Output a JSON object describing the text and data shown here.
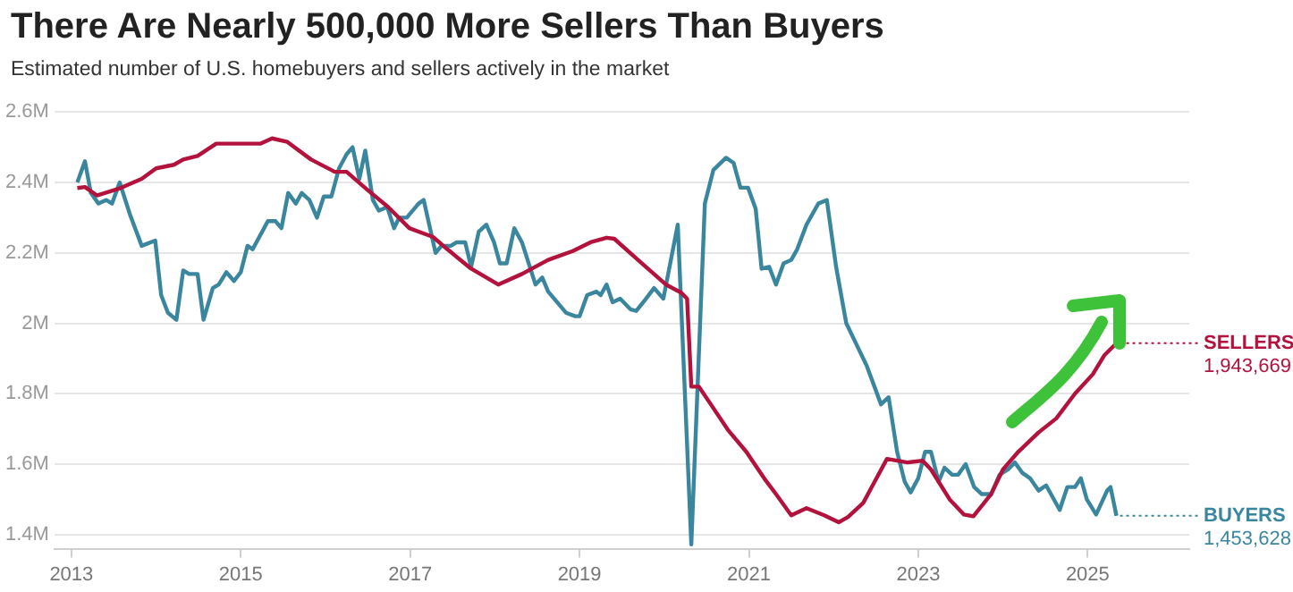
{
  "chart_data": {
    "type": "line",
    "title": "There Are Nearly 500,000 More Sellers Than Buyers",
    "subtitle": "Estimated number of U.S. homebuyers and sellers actively in the market",
    "xlim": [
      2012.8,
      2026.2
    ],
    "xticks": [
      2013,
      2015,
      2017,
      2019,
      2021,
      2023,
      2025
    ],
    "ylim": [
      1360000,
      2600000
    ],
    "yticks": [
      {
        "value": 1400000,
        "label": "1.4M"
      },
      {
        "value": 1600000,
        "label": "1.6M"
      },
      {
        "value": 1800000,
        "label": "1.8M"
      },
      {
        "value": 2000000,
        "label": "2M"
      },
      {
        "value": 2200000,
        "label": "2.2M"
      },
      {
        "value": 2400000,
        "label": "2.4M"
      },
      {
        "value": 2600000,
        "label": "2.6M"
      }
    ],
    "grid": "y",
    "legend": "right",
    "marker": "none",
    "line_style": "solid",
    "series": [
      {
        "name": "SELLERS",
        "color": "#b3123d",
        "x": [
          2013.07,
          2013.16,
          2013.3,
          2013.58,
          2013.83,
          2014.0,
          2014.21,
          2014.32,
          2014.49,
          2014.71,
          2015.0,
          2015.23,
          2015.37,
          2015.55,
          2015.83,
          2016.11,
          2016.25,
          2016.49,
          2016.74,
          2016.99,
          2017.27,
          2017.44,
          2017.72,
          2018.04,
          2018.32,
          2018.63,
          2018.92,
          2019.13,
          2019.32,
          2019.41,
          2019.69,
          2020.02,
          2020.2,
          2020.27,
          2020.32,
          2020.41,
          2020.55,
          2020.76,
          2020.97,
          2021.18,
          2021.32,
          2021.5,
          2021.68,
          2021.89,
          2022.06,
          2022.17,
          2022.35,
          2022.45,
          2022.63,
          2022.87,
          2023.05,
          2023.15,
          2023.37,
          2023.54,
          2023.65,
          2023.86,
          2024.0,
          2024.18,
          2024.42,
          2024.63,
          2024.85,
          2025.06,
          2025.2,
          2025.34
        ],
        "values": [
          2384000,
          2387000,
          2363000,
          2384000,
          2410000,
          2440000,
          2450000,
          2465000,
          2475000,
          2510000,
          2510000,
          2510000,
          2525000,
          2515000,
          2465000,
          2430000,
          2430000,
          2380000,
          2330000,
          2270000,
          2245000,
          2210000,
          2155000,
          2110000,
          2140000,
          2180000,
          2205000,
          2230000,
          2243000,
          2240000,
          2180000,
          2110000,
          2087000,
          2070000,
          1820000,
          1820000,
          1770000,
          1695000,
          1635000,
          1560000,
          1515000,
          1455000,
          1475000,
          1455000,
          1435000,
          1450000,
          1490000,
          1535000,
          1615000,
          1605000,
          1610000,
          1585000,
          1500000,
          1457000,
          1452000,
          1515000,
          1585000,
          1635000,
          1690000,
          1730000,
          1800000,
          1855000,
          1910000,
          1943669
        ],
        "value_labels": [
          null,
          null,
          null,
          null,
          null,
          null,
          null,
          null,
          null,
          null,
          null,
          null,
          null,
          null,
          null,
          null,
          null,
          null,
          null,
          null,
          null,
          null,
          null,
          null,
          null,
          null,
          null,
          null,
          null,
          null,
          null,
          null,
          null,
          null,
          null,
          null,
          null,
          null,
          null,
          null,
          null,
          null,
          null,
          null,
          null,
          null,
          null,
          null,
          null,
          null,
          null,
          null,
          null,
          null,
          null,
          null,
          null,
          null,
          null,
          null,
          null,
          null,
          null,
          "1,943,669"
        ]
      },
      {
        "name": "BUYERS",
        "color": "#3a869f",
        "x": [
          2013.07,
          2013.16,
          2013.23,
          2013.32,
          2013.41,
          2013.48,
          2013.57,
          2013.69,
          2013.83,
          2013.99,
          2014.06,
          2014.14,
          2014.24,
          2014.32,
          2014.39,
          2014.49,
          2014.56,
          2014.67,
          2014.74,
          2014.83,
          2014.92,
          2015.0,
          2015.08,
          2015.14,
          2015.32,
          2015.41,
          2015.48,
          2015.56,
          2015.65,
          2015.72,
          2015.81,
          2015.9,
          2015.98,
          2016.07,
          2016.16,
          2016.25,
          2016.32,
          2016.4,
          2016.47,
          2016.56,
          2016.63,
          2016.73,
          2016.81,
          2016.87,
          2016.96,
          2017.1,
          2017.16,
          2017.3,
          2017.37,
          2017.48,
          2017.55,
          2017.65,
          2017.72,
          2017.81,
          2017.9,
          2017.99,
          2018.06,
          2018.14,
          2018.23,
          2018.32,
          2018.48,
          2018.56,
          2018.63,
          2018.84,
          2018.95,
          2019.0,
          2019.09,
          2019.2,
          2019.25,
          2019.32,
          2019.39,
          2019.48,
          2019.6,
          2019.67,
          2019.77,
          2019.88,
          2019.99,
          2020.16,
          2020.32,
          2020.48,
          2020.58,
          2020.73,
          2020.82,
          2020.9,
          2020.99,
          2021.08,
          2021.15,
          2021.24,
          2021.32,
          2021.41,
          2021.5,
          2021.57,
          2021.68,
          2021.82,
          2021.92,
          2022.03,
          2022.15,
          2022.27,
          2022.39,
          2022.56,
          2022.65,
          2022.75,
          2022.84,
          2022.91,
          2023.0,
          2023.08,
          2023.15,
          2023.24,
          2023.31,
          2023.4,
          2023.47,
          2023.56,
          2023.66,
          2023.75,
          2023.86,
          2023.96,
          2024.06,
          2024.14,
          2024.23,
          2024.32,
          2024.42,
          2024.51,
          2024.67,
          2024.76,
          2024.85,
          2024.92,
          2024.99,
          2025.1,
          2025.23,
          2025.27,
          2025.34
        ],
        "values": [
          2400000,
          2460000,
          2370000,
          2340000,
          2350000,
          2340000,
          2400000,
          2310000,
          2220000,
          2235000,
          2080000,
          2030000,
          2010000,
          2150000,
          2140000,
          2140000,
          2010000,
          2100000,
          2110000,
          2145000,
          2120000,
          2145000,
          2220000,
          2210000,
          2290000,
          2290000,
          2270000,
          2370000,
          2340000,
          2370000,
          2350000,
          2300000,
          2360000,
          2360000,
          2440000,
          2480000,
          2500000,
          2410000,
          2490000,
          2350000,
          2320000,
          2330000,
          2270000,
          2300000,
          2300000,
          2340000,
          2350000,
          2200000,
          2220000,
          2220000,
          2230000,
          2230000,
          2160000,
          2260000,
          2280000,
          2230000,
          2170000,
          2170000,
          2270000,
          2230000,
          2110000,
          2130000,
          2090000,
          2030000,
          2020000,
          2020000,
          2080000,
          2090000,
          2080000,
          2110000,
          2060000,
          2070000,
          2040000,
          2035000,
          2065000,
          2100000,
          2070000,
          2280000,
          1372000,
          2340000,
          2435000,
          2470000,
          2455000,
          2385000,
          2385000,
          2325000,
          2155000,
          2160000,
          2110000,
          2170000,
          2180000,
          2210000,
          2280000,
          2340000,
          2350000,
          2160000,
          2000000,
          1940000,
          1880000,
          1770000,
          1790000,
          1635000,
          1550000,
          1520000,
          1560000,
          1635000,
          1635000,
          1550000,
          1590000,
          1570000,
          1570000,
          1600000,
          1535000,
          1515000,
          1515000,
          1570000,
          1585000,
          1605000,
          1575000,
          1560000,
          1525000,
          1540000,
          1470000,
          1535000,
          1535000,
          1560000,
          1500000,
          1457000,
          1525000,
          1535000,
          1453628
        ],
        "value_labels": [
          null,
          null,
          null,
          null,
          null,
          null,
          null,
          null,
          null,
          null,
          null,
          null,
          null,
          null,
          null,
          null,
          null,
          null,
          null,
          null,
          null,
          null,
          null,
          null,
          null,
          null,
          null,
          null,
          null,
          null,
          null,
          null,
          null,
          null,
          null,
          null,
          null,
          null,
          null,
          null,
          null,
          null,
          null,
          null,
          null,
          null,
          null,
          null,
          null,
          null,
          null,
          null,
          null,
          null,
          null,
          null,
          null,
          null,
          null,
          null,
          null,
          null,
          null,
          null,
          null,
          null,
          null,
          null,
          null,
          null,
          null,
          null,
          null,
          null,
          null,
          null,
          null,
          null,
          null,
          null,
          null,
          null,
          null,
          null,
          null,
          null,
          null,
          null,
          null,
          null,
          null,
          null,
          null,
          null,
          null,
          null,
          null,
          null,
          null,
          null,
          null,
          null,
          null,
          null,
          null,
          null,
          null,
          null,
          null,
          null,
          null,
          null,
          null,
          null,
          null,
          null,
          null,
          null,
          null,
          null,
          null,
          null,
          null,
          null,
          null,
          null,
          null,
          null,
          null,
          null,
          "1,453,628"
        ]
      }
    ]
  }
}
